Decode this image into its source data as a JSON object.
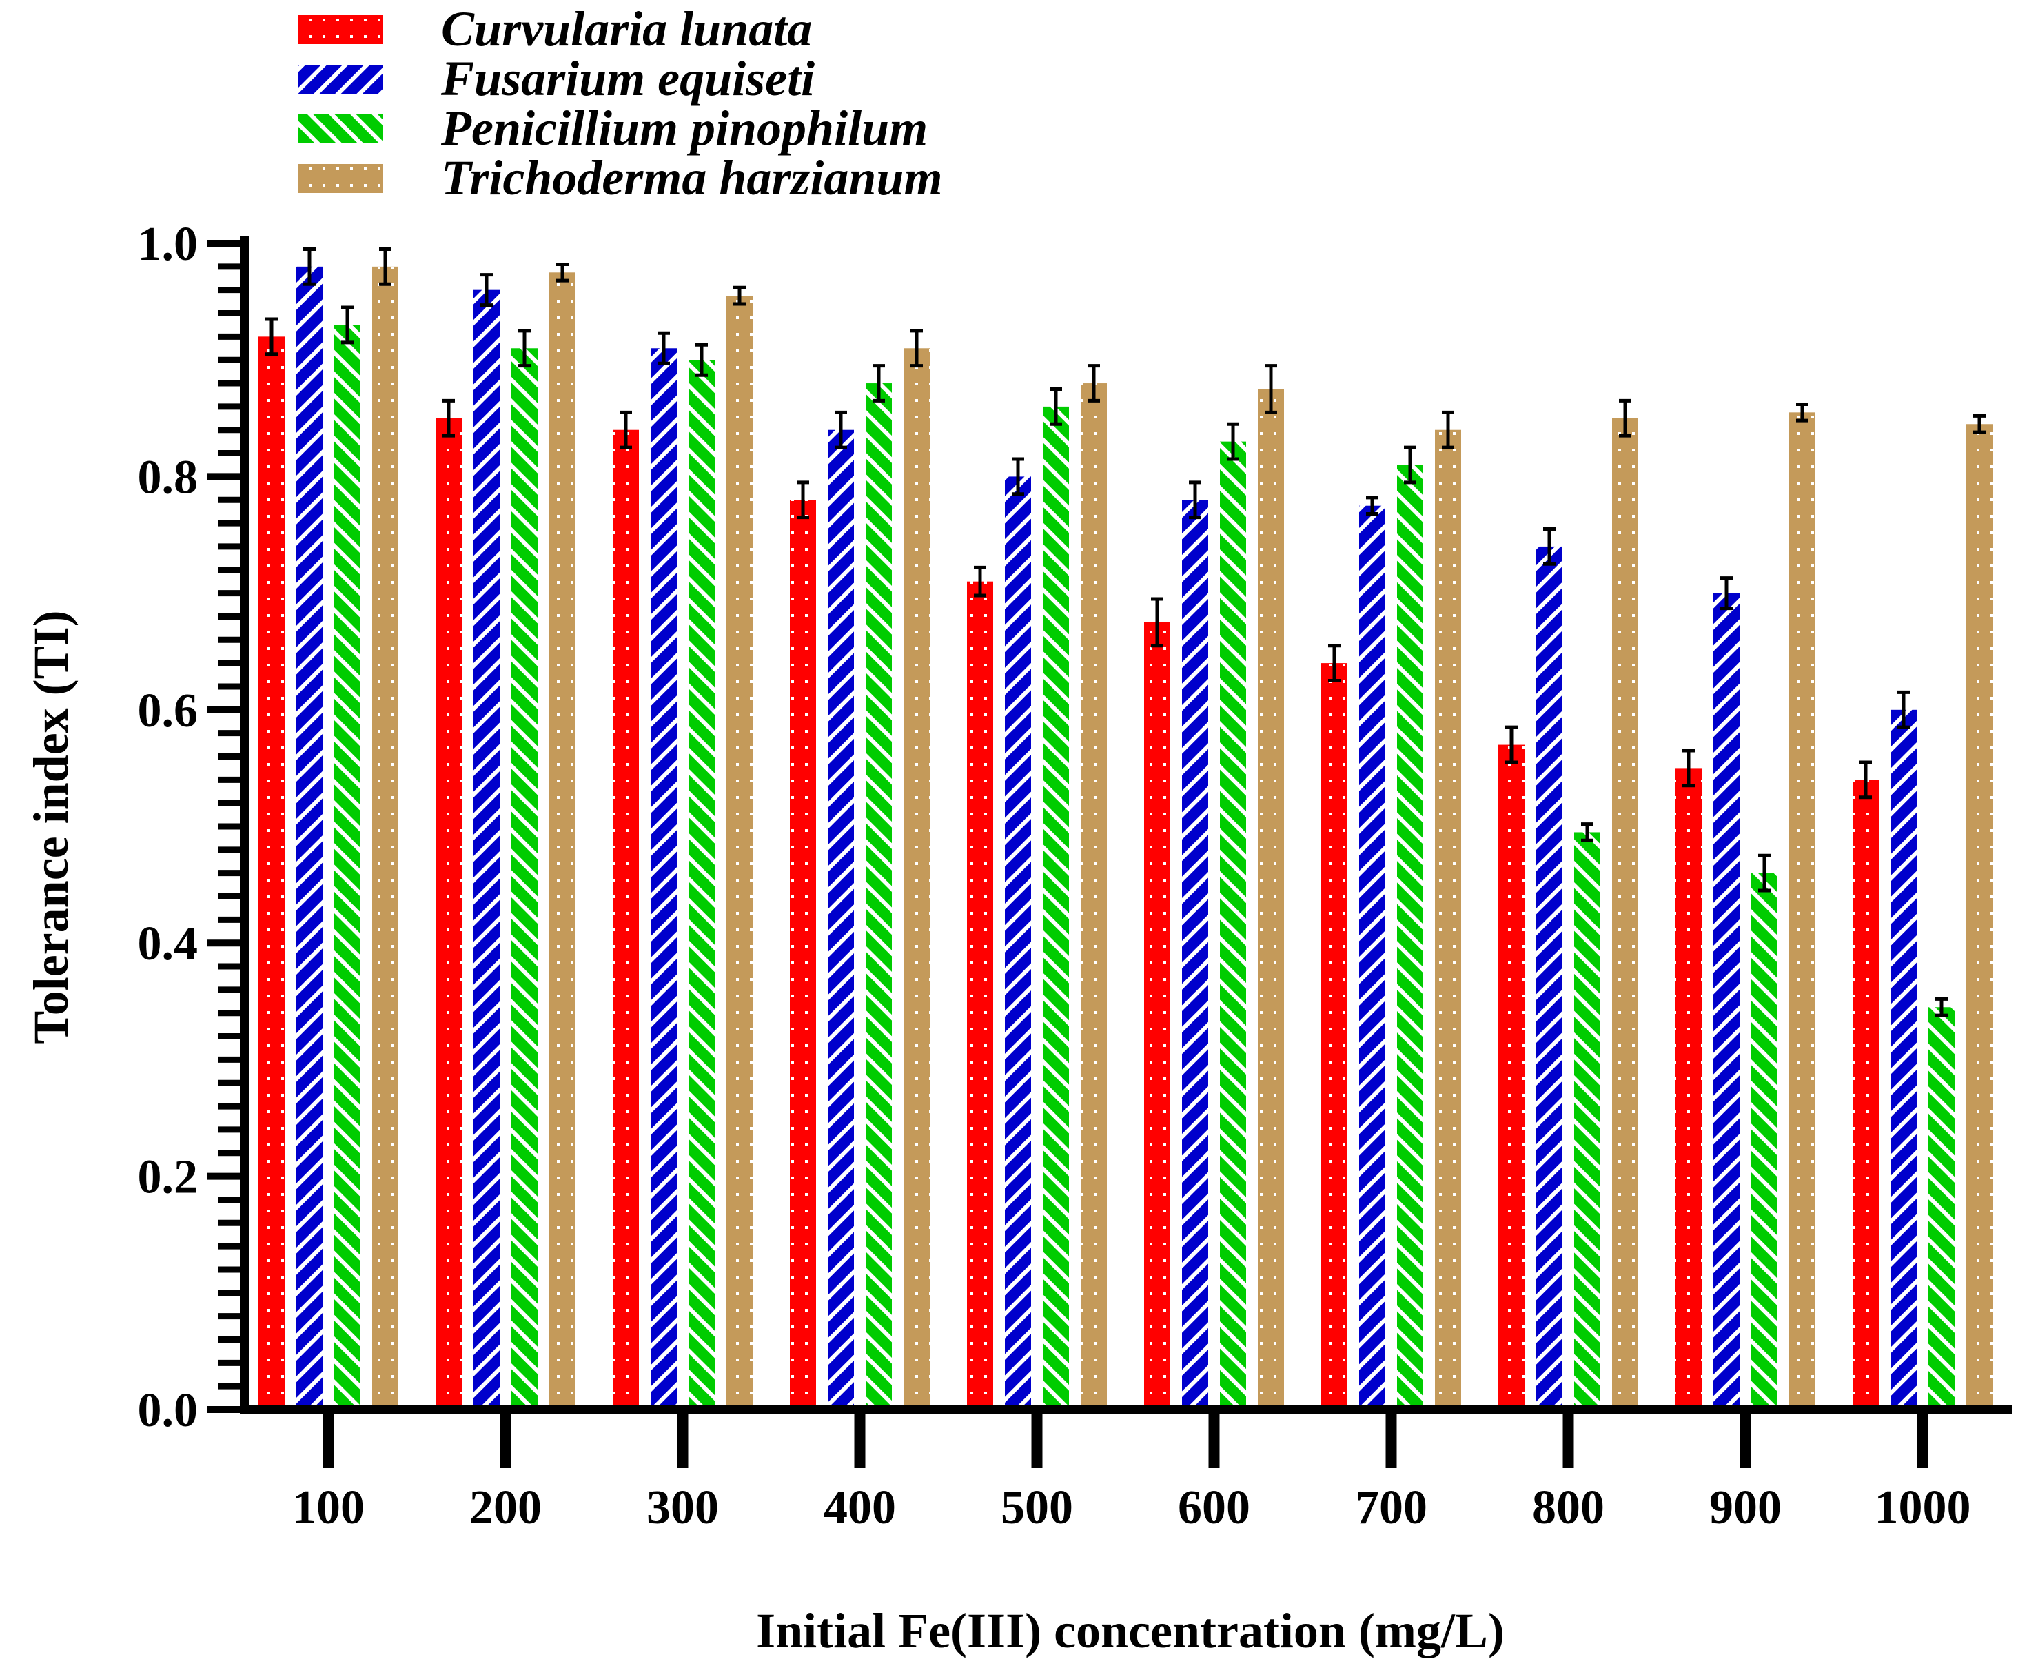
{
  "chart_data": {
    "type": "bar",
    "title": "",
    "xlabel": "Initial Fe(III) concentration (mg/L)",
    "ylabel": "Tolerance index (TI)",
    "ylim": [
      0,
      1.0
    ],
    "yticks": [
      "0.0",
      "0.2",
      "0.4",
      "0.6",
      "0.8",
      "1.0"
    ],
    "categories": [
      "100",
      "200",
      "300",
      "400",
      "500",
      "600",
      "700",
      "800",
      "900",
      "1000"
    ],
    "legend_position": "top-left",
    "grid": false,
    "series": [
      {
        "name": "Curvularia lunata",
        "color": "#ff0000",
        "pattern": "dots",
        "values": [
          0.92,
          0.85,
          0.84,
          0.78,
          0.71,
          0.675,
          0.64,
          0.57,
          0.55,
          0.54
        ],
        "errors": [
          0.015,
          0.015,
          0.015,
          0.015,
          0.012,
          0.02,
          0.015,
          0.015,
          0.015,
          0.015
        ]
      },
      {
        "name": "Fusarium equiseti",
        "color": "#0000cc",
        "pattern": "stripes",
        "values": [
          0.98,
          0.96,
          0.91,
          0.84,
          0.8,
          0.78,
          0.775,
          0.74,
          0.7,
          0.6
        ],
        "errors": [
          0.015,
          0.013,
          0.013,
          0.015,
          0.015,
          0.015,
          0.007,
          0.015,
          0.013,
          0.015
        ]
      },
      {
        "name": "Penicillium pinophilum",
        "color": "#00cc00",
        "pattern": "stripes-reverse",
        "values": [
          0.93,
          0.91,
          0.9,
          0.88,
          0.86,
          0.83,
          0.81,
          0.495,
          0.46,
          0.345
        ],
        "errors": [
          0.015,
          0.015,
          0.013,
          0.015,
          0.015,
          0.015,
          0.015,
          0.007,
          0.015,
          0.007
        ]
      },
      {
        "name": "Trichoderma harzianum",
        "color": "#c49a5a",
        "pattern": "dots",
        "values": [
          0.98,
          0.975,
          0.955,
          0.91,
          0.88,
          0.875,
          0.84,
          0.85,
          0.855,
          0.845
        ],
        "errors": [
          0.015,
          0.007,
          0.007,
          0.015,
          0.015,
          0.02,
          0.015,
          0.015,
          0.007,
          0.007
        ]
      }
    ]
  }
}
